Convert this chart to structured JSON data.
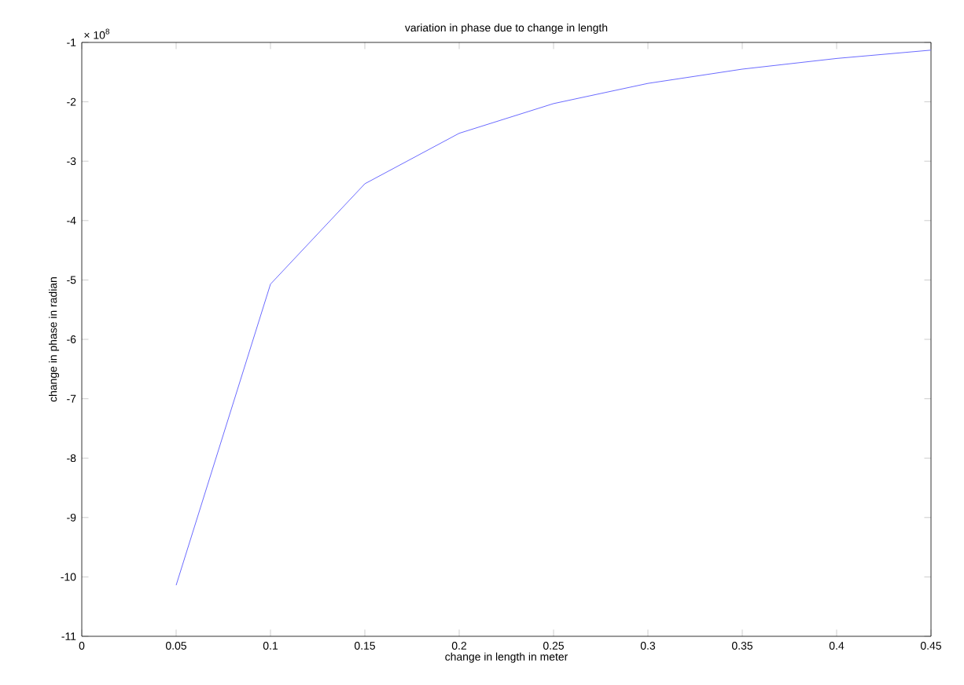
{
  "chart_data": {
    "type": "line",
    "title": "variation in phase due to change in length",
    "xlabel": "change in length in meter",
    "ylabel": "change in phase in radian",
    "annotations": [
      "× 10$^{8}$"
    ],
    "x": [
      0.05,
      0.1,
      0.15,
      0.2,
      0.25,
      0.3,
      0.35,
      0.4,
      0.45
    ],
    "series": [
      {
        "color": "#6a6aff",
        "values": [
          -10.14,
          -5.07,
          -3.38,
          -2.53,
          -2.03,
          -1.69,
          -1.45,
          -1.27,
          -1.13
        ]
      }
    ],
    "xlim": [
      0,
      0.45
    ],
    "ylim": [
      -11,
      -1
    ],
    "xticks": [
      0,
      0.05,
      0.1,
      0.15,
      0.2,
      0.25,
      0.3,
      0.35,
      0.4,
      0.45
    ],
    "yticks": [
      -11,
      -10,
      -9,
      -8,
      -7,
      -6,
      -5,
      -4,
      -3,
      -2,
      -1
    ],
    "grid": false,
    "marker": "none",
    "line_style": "solid"
  }
}
